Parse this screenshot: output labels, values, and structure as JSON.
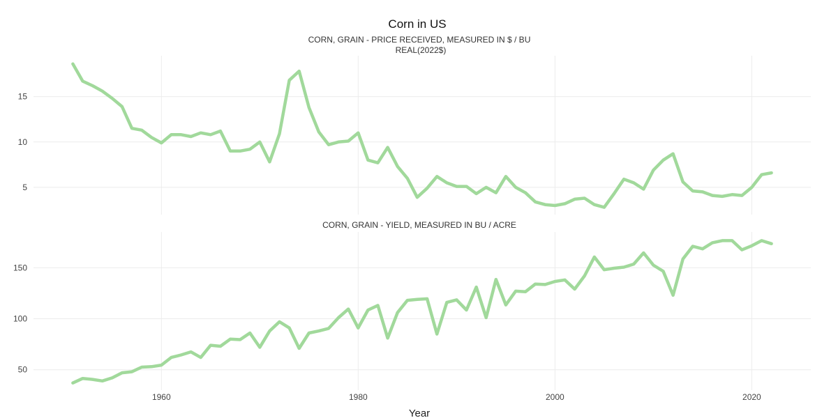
{
  "chart_data": {
    "type": "line",
    "title": "Corn in US",
    "xlabel": "Year",
    "xlim": [
      1947,
      2026
    ],
    "xticks": [
      1960,
      1980,
      2000,
      2020
    ],
    "grid": true,
    "line_color": "#a1d99b",
    "panels": [
      {
        "title": "CORN, GRAIN - PRICE RECEIVED, MEASURED IN $ / BU",
        "subtitle": "REAL(2022$)",
        "ylim": [
          2,
          19.5
        ],
        "yticks": [
          5,
          10,
          15
        ],
        "x": [
          1951,
          1952,
          1953,
          1954,
          1955,
          1956,
          1957,
          1958,
          1959,
          1960,
          1961,
          1962,
          1963,
          1964,
          1965,
          1966,
          1967,
          1968,
          1969,
          1970,
          1971,
          1972,
          1973,
          1974,
          1975,
          1976,
          1977,
          1978,
          1979,
          1980,
          1981,
          1982,
          1983,
          1984,
          1985,
          1986,
          1987,
          1988,
          1989,
          1990,
          1991,
          1992,
          1993,
          1994,
          1995,
          1996,
          1997,
          1998,
          1999,
          2000,
          2001,
          2002,
          2003,
          2004,
          2005,
          2006,
          2007,
          2008,
          2009,
          2010,
          2011,
          2012,
          2013,
          2014,
          2015,
          2016,
          2017,
          2018,
          2019,
          2020,
          2021,
          2022
        ],
        "y": [
          18.6,
          16.7,
          16.2,
          15.6,
          14.8,
          13.9,
          11.5,
          11.3,
          10.5,
          9.9,
          10.8,
          10.8,
          10.6,
          11.0,
          10.8,
          11.2,
          9.0,
          9.0,
          9.2,
          10.0,
          7.8,
          10.9,
          16.8,
          17.8,
          13.8,
          11.1,
          9.7,
          10.0,
          10.1,
          11.0,
          8.0,
          7.7,
          9.4,
          7.3,
          6.0,
          3.9,
          4.9,
          6.2,
          5.5,
          5.1,
          5.1,
          4.3,
          5.0,
          4.4,
          6.2,
          5.0,
          4.4,
          3.4,
          3.1,
          3.0,
          3.2,
          3.7,
          3.8,
          3.1,
          2.8,
          4.3,
          5.9,
          5.5,
          4.8,
          6.9,
          8.0,
          8.7,
          5.6,
          4.6,
          4.5,
          4.1,
          4.0,
          4.2,
          4.1,
          5.0,
          6.4,
          6.6
        ]
      },
      {
        "title": "CORN, GRAIN - YIELD, MEASURED IN BU / ACRE",
        "ylim": [
          30,
          185
        ],
        "yticks": [
          50,
          100,
          150
        ],
        "x": [
          1951,
          1952,
          1953,
          1954,
          1955,
          1956,
          1957,
          1958,
          1959,
          1960,
          1961,
          1962,
          1963,
          1964,
          1965,
          1966,
          1967,
          1968,
          1969,
          1970,
          1971,
          1972,
          1973,
          1974,
          1975,
          1976,
          1977,
          1978,
          1979,
          1980,
          1981,
          1982,
          1983,
          1984,
          1985,
          1986,
          1987,
          1988,
          1989,
          1990,
          1991,
          1992,
          1993,
          1994,
          1995,
          1996,
          1997,
          1998,
          1999,
          2000,
          2001,
          2002,
          2003,
          2004,
          2005,
          2006,
          2007,
          2008,
          2009,
          2010,
          2011,
          2012,
          2013,
          2014,
          2015,
          2016,
          2017,
          2018,
          2019,
          2020,
          2021,
          2022
        ],
        "y": [
          37,
          41.5,
          40.5,
          39,
          42,
          47,
          48,
          52.5,
          53,
          54.5,
          62,
          64.5,
          67.5,
          62,
          74,
          73,
          80,
          79.5,
          86,
          72,
          88,
          97,
          91,
          71,
          86,
          88,
          90.5,
          101,
          109.5,
          91,
          108.5,
          113,
          81,
          106,
          118,
          119,
          119.5,
          85,
          116,
          118.5,
          108.5,
          131,
          101,
          138.5,
          113.5,
          127,
          126.5,
          134,
          133.5,
          136.5,
          138,
          129,
          142,
          160.5,
          148,
          149.5,
          150.5,
          153.5,
          164.5,
          152.5,
          146.5,
          123,
          158.5,
          171,
          168.5,
          174.5,
          176.5,
          176.5,
          167.5,
          171.5,
          176.5,
          173.5
        ]
      }
    ]
  }
}
